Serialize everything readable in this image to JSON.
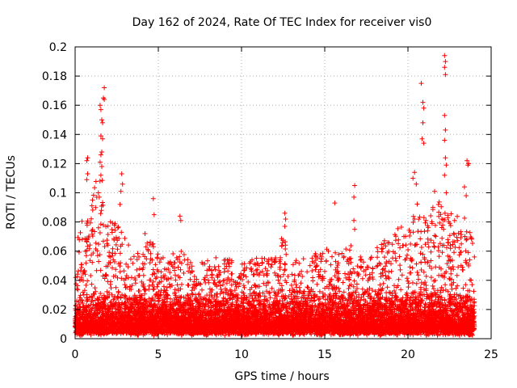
{
  "chart_data": {
    "type": "scatter",
    "title": "Day 162 of 2024, Rate Of TEC Index for receiver vis0",
    "xlabel": "GPS time / hours",
    "ylabel": "ROTI / TECUs",
    "xlim": [
      0,
      25
    ],
    "ylim": [
      0,
      0.2
    ],
    "x_ticks": [
      0,
      5,
      10,
      15,
      20,
      25
    ],
    "y_ticks": [
      0,
      0.02,
      0.04,
      0.06,
      0.08,
      0.1,
      0.12,
      0.14,
      0.16,
      0.18,
      0.2
    ],
    "x_tick_labels": [
      "0",
      "5",
      "10",
      "15",
      "20",
      "25"
    ],
    "y_tick_labels": [
      "0",
      "0.02",
      "0.04",
      "0.06",
      "0.08",
      "0.1",
      "0.12",
      "0.14",
      "0.16",
      "0.18",
      "0.2"
    ],
    "grid": true,
    "marker": "+",
    "color": "#ff0000",
    "series": [
      {
        "x_range": [
          0,
          24
        ],
        "profile": [
          [
            0.0,
            0.07
          ],
          [
            0.5,
            0.085
          ],
          [
            1.0,
            0.095
          ],
          [
            1.5,
            0.12
          ],
          [
            2.0,
            0.075
          ],
          [
            2.5,
            0.08
          ],
          [
            3.0,
            0.065
          ],
          [
            3.5,
            0.055
          ],
          [
            4.0,
            0.055
          ],
          [
            4.5,
            0.065
          ],
          [
            5.0,
            0.06
          ],
          [
            5.5,
            0.055
          ],
          [
            6.0,
            0.055
          ],
          [
            6.5,
            0.065
          ],
          [
            7.0,
            0.048
          ],
          [
            7.5,
            0.05
          ],
          [
            8.0,
            0.052
          ],
          [
            8.5,
            0.052
          ],
          [
            9.0,
            0.05
          ],
          [
            9.5,
            0.052
          ],
          [
            10.0,
            0.048
          ],
          [
            10.5,
            0.05
          ],
          [
            11.0,
            0.052
          ],
          [
            11.5,
            0.052
          ],
          [
            12.0,
            0.05
          ],
          [
            12.5,
            0.07
          ],
          [
            13.0,
            0.055
          ],
          [
            13.5,
            0.05
          ],
          [
            14.0,
            0.055
          ],
          [
            14.5,
            0.055
          ],
          [
            15.0,
            0.06
          ],
          [
            15.5,
            0.055
          ],
          [
            16.0,
            0.055
          ],
          [
            16.5,
            0.062
          ],
          [
            17.0,
            0.055
          ],
          [
            17.5,
            0.055
          ],
          [
            18.0,
            0.058
          ],
          [
            18.5,
            0.062
          ],
          [
            19.0,
            0.07
          ],
          [
            19.5,
            0.072
          ],
          [
            20.0,
            0.075
          ],
          [
            20.5,
            0.09
          ],
          [
            21.0,
            0.08
          ],
          [
            21.5,
            0.085
          ],
          [
            22.0,
            0.095
          ],
          [
            22.5,
            0.082
          ],
          [
            23.0,
            0.085
          ],
          [
            23.5,
            0.082
          ],
          [
            24.0,
            0.06
          ]
        ],
        "outliers": [
          [
            1.75,
            0.172
          ],
          [
            1.7,
            0.165
          ],
          [
            1.75,
            0.164
          ],
          [
            1.5,
            0.16
          ],
          [
            1.55,
            0.157
          ],
          [
            1.6,
            0.15
          ],
          [
            1.65,
            0.148
          ],
          [
            1.55,
            0.139
          ],
          [
            1.65,
            0.137
          ],
          [
            1.6,
            0.128
          ],
          [
            1.55,
            0.126
          ],
          [
            1.5,
            0.121
          ],
          [
            1.6,
            0.118
          ],
          [
            1.55,
            0.112
          ],
          [
            0.75,
            0.124
          ],
          [
            0.7,
            0.122
          ],
          [
            0.75,
            0.113
          ],
          [
            0.7,
            0.109
          ],
          [
            2.8,
            0.113
          ],
          [
            2.85,
            0.106
          ],
          [
            2.75,
            0.101
          ],
          [
            1.4,
            0.1
          ],
          [
            1.45,
            0.097
          ],
          [
            2.7,
            0.092
          ],
          [
            4.7,
            0.096
          ],
          [
            4.75,
            0.085
          ],
          [
            6.3,
            0.084
          ],
          [
            6.35,
            0.081
          ],
          [
            4.2,
            0.072
          ],
          [
            12.6,
            0.086
          ],
          [
            12.65,
            0.082
          ],
          [
            12.6,
            0.077
          ],
          [
            15.6,
            0.093
          ],
          [
            16.8,
            0.105
          ],
          [
            16.75,
            0.097
          ],
          [
            16.75,
            0.081
          ],
          [
            16.8,
            0.075
          ],
          [
            20.8,
            0.175
          ],
          [
            20.9,
            0.162
          ],
          [
            20.95,
            0.158
          ],
          [
            20.9,
            0.148
          ],
          [
            20.85,
            0.137
          ],
          [
            20.95,
            0.134
          ],
          [
            22.2,
            0.194
          ],
          [
            22.25,
            0.19
          ],
          [
            22.2,
            0.186
          ],
          [
            22.25,
            0.181
          ],
          [
            22.2,
            0.153
          ],
          [
            22.25,
            0.143
          ],
          [
            22.2,
            0.136
          ],
          [
            22.25,
            0.124
          ],
          [
            22.3,
            0.119
          ],
          [
            22.2,
            0.112
          ],
          [
            22.3,
            0.1
          ],
          [
            20.4,
            0.114
          ],
          [
            20.3,
            0.11
          ],
          [
            20.5,
            0.106
          ],
          [
            23.55,
            0.122
          ],
          [
            23.6,
            0.119
          ],
          [
            23.65,
            0.12
          ],
          [
            23.4,
            0.104
          ],
          [
            23.5,
            0.098
          ],
          [
            21.6,
            0.101
          ],
          [
            21.5,
            0.09
          ]
        ]
      }
    ]
  }
}
